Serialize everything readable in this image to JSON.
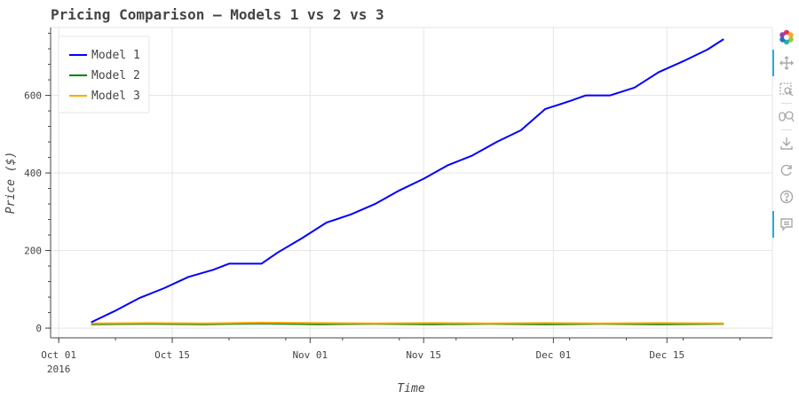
{
  "chart_data": {
    "type": "line",
    "title": "Pricing Comparison – Models 1 vs 2 vs 3",
    "xlabel": "Time",
    "ylabel": "Price ($)",
    "x_axis_type": "datetime",
    "xlim": [
      "2016-09-30",
      "2016-12-28"
    ],
    "ylim": [
      -25,
      775
    ],
    "x_ticks": [
      {
        "date": "2016-10-01",
        "label": "Oct 01",
        "sublabel": "2016"
      },
      {
        "date": "2016-10-15",
        "label": "Oct 15",
        "sublabel": ""
      },
      {
        "date": "2016-11-01",
        "label": "Nov 01",
        "sublabel": ""
      },
      {
        "date": "2016-11-15",
        "label": "Nov 15",
        "sublabel": ""
      },
      {
        "date": "2016-12-01",
        "label": "Dec 01",
        "sublabel": ""
      },
      {
        "date": "2016-12-15",
        "label": "Dec 15",
        "sublabel": ""
      }
    ],
    "y_ticks": [
      0,
      200,
      400,
      600
    ],
    "grid": true,
    "legend_position": "top-left",
    "series": [
      {
        "name": "Model 1",
        "color": "#0000ff",
        "points": [
          [
            "2016-10-05",
            15
          ],
          [
            "2016-10-08",
            45
          ],
          [
            "2016-10-11",
            78
          ],
          [
            "2016-10-14",
            103
          ],
          [
            "2016-10-17",
            132
          ],
          [
            "2016-10-20",
            150
          ],
          [
            "2016-10-22",
            166
          ],
          [
            "2016-10-26",
            166
          ],
          [
            "2016-10-28",
            195
          ],
          [
            "2016-10-31",
            232
          ],
          [
            "2016-11-03",
            272
          ],
          [
            "2016-11-06",
            293
          ],
          [
            "2016-11-09",
            320
          ],
          [
            "2016-11-12",
            355
          ],
          [
            "2016-11-15",
            385
          ],
          [
            "2016-11-18",
            420
          ],
          [
            "2016-11-21",
            445
          ],
          [
            "2016-11-24",
            480
          ],
          [
            "2016-11-27",
            510
          ],
          [
            "2016-11-30",
            565
          ],
          [
            "2016-12-03",
            585
          ],
          [
            "2016-12-05",
            600
          ],
          [
            "2016-12-08",
            600
          ],
          [
            "2016-12-11",
            620
          ],
          [
            "2016-12-14",
            660
          ],
          [
            "2016-12-17",
            688
          ],
          [
            "2016-12-20",
            718
          ],
          [
            "2016-12-22",
            745
          ]
        ]
      },
      {
        "name": "Model 2",
        "color": "#008000",
        "points": [
          [
            "2016-10-05",
            10
          ],
          [
            "2016-10-12",
            11
          ],
          [
            "2016-10-19",
            10
          ],
          [
            "2016-10-26",
            12
          ],
          [
            "2016-11-02",
            10
          ],
          [
            "2016-11-09",
            11
          ],
          [
            "2016-11-16",
            10
          ],
          [
            "2016-11-23",
            11
          ],
          [
            "2016-11-30",
            10
          ],
          [
            "2016-12-07",
            11
          ],
          [
            "2016-12-14",
            10
          ],
          [
            "2016-12-22",
            11
          ]
        ]
      },
      {
        "name": "Model 3",
        "color": "#ffa500",
        "points": [
          [
            "2016-10-05",
            12
          ],
          [
            "2016-10-12",
            13
          ],
          [
            "2016-10-19",
            12
          ],
          [
            "2016-10-26",
            14
          ],
          [
            "2016-11-02",
            13
          ],
          [
            "2016-11-09",
            12
          ],
          [
            "2016-11-16",
            13
          ],
          [
            "2016-11-23",
            12
          ],
          [
            "2016-11-30",
            13
          ],
          [
            "2016-12-07",
            12
          ],
          [
            "2016-12-14",
            13
          ],
          [
            "2016-12-22",
            12
          ]
        ]
      }
    ]
  },
  "toolbar": {
    "logo_icon": "bokeh-logo-icon",
    "tools": [
      "pan-icon",
      "box-zoom-icon",
      "wheel-zoom-icon",
      "save-icon",
      "reset-icon",
      "help-icon",
      "hover-icon"
    ]
  }
}
